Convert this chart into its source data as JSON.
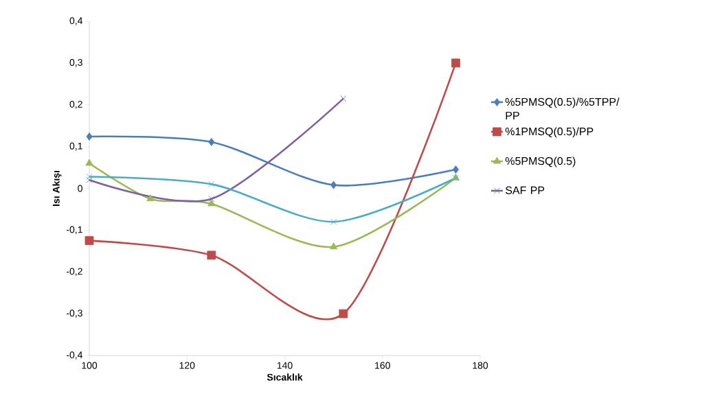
{
  "chart_data": {
    "type": "line",
    "xlabel": "Sıcaklık",
    "ylabel": "Isı Akışı",
    "xlim": [
      100,
      180
    ],
    "ylim": [
      -0.4,
      0.4
    ],
    "xticks": [
      100,
      120,
      140,
      160,
      180
    ],
    "yticks": [
      {
        "value": -0.4,
        "label": "-0,4"
      },
      {
        "value": -0.3,
        "label": "-0,3"
      },
      {
        "value": -0.2,
        "label": "-0,2"
      },
      {
        "value": -0.1,
        "label": "-0,1"
      },
      {
        "value": 0,
        "label": "0"
      },
      {
        "value": 0.1,
        "label": "0,1"
      },
      {
        "value": 0.2,
        "label": "0,2"
      },
      {
        "value": 0.3,
        "label": "0,3"
      },
      {
        "value": 0.4,
        "label": "0,4"
      }
    ],
    "grid": false,
    "legend": "right",
    "line_style": "solid",
    "series": [
      {
        "name": "%5PMSQ(0.5)/%5TPP/ PP",
        "color": "#4a7ebb",
        "marker": "diamond",
        "x": [
          100,
          125,
          150,
          175
        ],
        "values": [
          0.124,
          0.111,
          0.008,
          0.045
        ]
      },
      {
        "name": "%1PMSQ(0.5)/PP",
        "color": "#be4b48",
        "marker": "square",
        "x": [
          100,
          125,
          152,
          175
        ],
        "values": [
          -0.125,
          -0.16,
          -0.3,
          0.3
        ]
      },
      {
        "name": "%5PMSQ(0.5)",
        "color": "#98b954",
        "marker": "triangle",
        "x": [
          100,
          112.5,
          125,
          150,
          175
        ],
        "values": [
          0.06,
          -0.025,
          -0.037,
          -0.14,
          0.025
        ]
      },
      {
        "name": "SAF PP",
        "color": "#7d60a0",
        "marker": "cross",
        "x": [
          100,
          125,
          152
        ],
        "values": [
          0.02,
          -0.025,
          0.215
        ]
      },
      {
        "color": "#4bacc6",
        "marker": "cross",
        "x": [
          100,
          125,
          150,
          175
        ],
        "values": [
          0.028,
          0.01,
          -0.08,
          0.025
        ]
      }
    ]
  }
}
